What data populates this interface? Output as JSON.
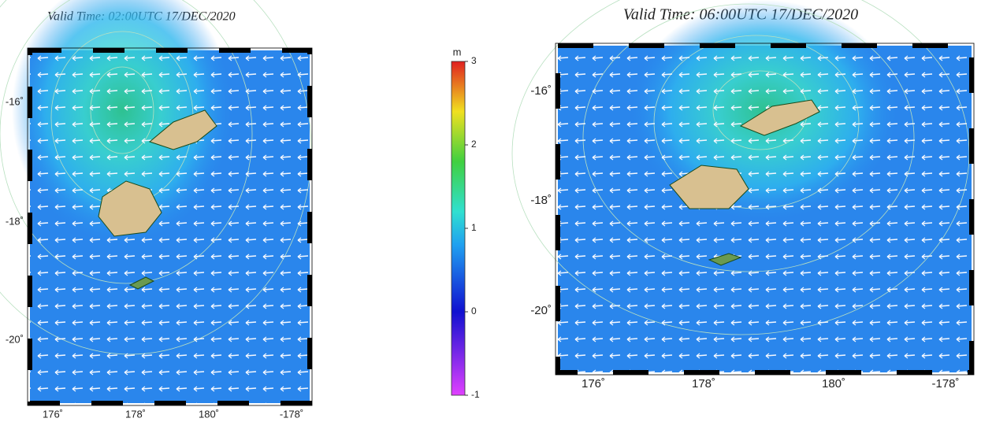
{
  "panels": [
    {
      "title": "Valid Time: 02:00UTC 17/DEC/2020",
      "y_labels": [
        "-16˚",
        "-18˚",
        "-20˚"
      ],
      "x_labels": [
        "176˚",
        "178˚",
        "180˚",
        "-178˚"
      ]
    },
    {
      "title": "Valid Time: 06:00UTC 17/DEC/2020",
      "y_labels": [
        "-16˚",
        "-18˚",
        "-20˚"
      ],
      "x_labels": [
        "176˚",
        "178˚",
        "180˚",
        "-178˚"
      ]
    }
  ],
  "colorbar": {
    "unit": "m",
    "range": [
      -1,
      3
    ],
    "ticks": [
      -1,
      0,
      1,
      2,
      3
    ]
  }
}
